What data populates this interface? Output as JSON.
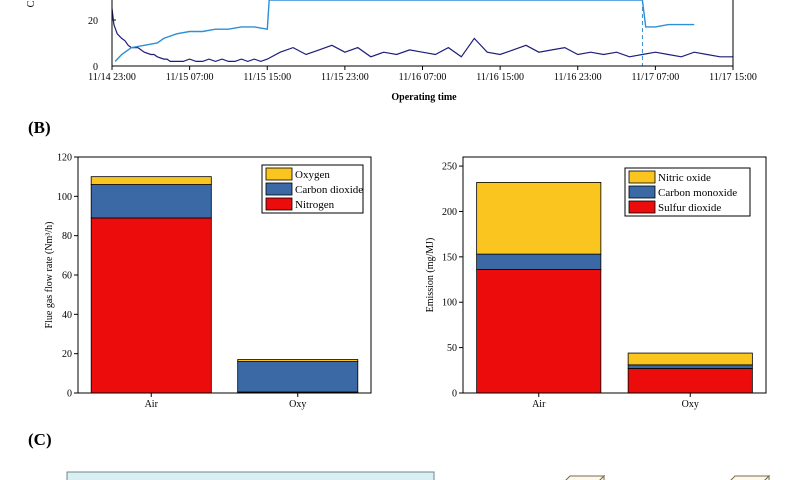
{
  "panels": {
    "b_label": "(B)",
    "c_label": "(C)"
  },
  "colors": {
    "line_dark": "#1e1e7a",
    "line_light": "#2f8fd6",
    "nitrogen": "#ec0c0c",
    "carbon_dioxide": "#3a69a6",
    "oxygen": "#f9c51e",
    "sulfur_dioxide": "#ec0c0c",
    "carbon_monoxide": "#3a69a6",
    "nitric_oxide": "#f9c51e",
    "panel_c_box": "#daeff2"
  },
  "chart_data": [
    {
      "type": "line",
      "partial": true,
      "xlabel": "Operating time",
      "ylabel": "C",
      "yticks": [
        "0",
        "20"
      ],
      "xticks": [
        "11/14 23:00",
        "11/15 07:00",
        "11/15 15:00",
        "11/15 23:00",
        "11/16 07:00",
        "11/16 15:00",
        "11/16 23:00",
        "11/17 07:00",
        "11/17 15:00"
      ],
      "series": [
        {
          "x": [
            0,
            0.3,
            0.8,
            1.5,
            2,
            2.5,
            3,
            4,
            5,
            6,
            6.5,
            7,
            8,
            8.5,
            9,
            10,
            11,
            12,
            13,
            14,
            15,
            16,
            17,
            18,
            19,
            20,
            21,
            22,
            23,
            24,
            26,
            28,
            30,
            32,
            34,
            36,
            38,
            40,
            42,
            44,
            46,
            48,
            50,
            52,
            54,
            56,
            58,
            60,
            62,
            64,
            66,
            68,
            70,
            72,
            74,
            76,
            78,
            80,
            82,
            84,
            86,
            88,
            90,
            92,
            94,
            96
          ],
          "y": [
            25,
            18,
            14,
            12,
            11,
            9,
            8,
            8,
            6,
            5,
            5,
            4,
            3,
            3,
            2,
            2,
            2,
            3,
            2,
            2,
            3,
            2,
            3,
            2,
            2,
            3,
            2,
            3,
            2,
            3,
            6,
            8,
            5,
            7,
            9,
            6,
            8,
            4,
            6,
            5,
            7,
            6,
            5,
            8,
            4,
            12,
            6,
            5,
            7,
            9,
            6,
            7,
            8,
            5,
            6,
            5,
            6,
            4,
            5,
            6,
            5,
            4,
            6,
            5,
            4,
            4
          ]
        },
        {
          "x": [
            0.5,
            1.5,
            3,
            5,
            7,
            8,
            10,
            12,
            14,
            16,
            18,
            20,
            22,
            24,
            24.3,
            82,
            82.5,
            84,
            86,
            88,
            90
          ],
          "y": [
            2,
            5,
            8,
            9,
            10,
            12,
            14,
            15,
            15,
            16,
            16,
            17,
            17,
            16,
            40,
            40,
            17,
            17,
            18,
            18,
            18
          ]
        }
      ]
    },
    {
      "type": "bar",
      "stacked": true,
      "categories": [
        "Air",
        "Oxy"
      ],
      "ylabel": "Flue gas flow rate (Nm³/h)",
      "ylim": [
        0,
        120
      ],
      "yticks": [
        "0",
        "20",
        "40",
        "60",
        "80",
        "100",
        "120"
      ],
      "legend_position": "top-right",
      "series": [
        {
          "name": "Nitrogen",
          "values": [
            89,
            0.5
          ]
        },
        {
          "name": "Carbon dioxide",
          "values": [
            17,
            15.5
          ]
        },
        {
          "name": "Oxygen",
          "values": [
            4,
            1
          ]
        }
      ]
    },
    {
      "type": "bar",
      "stacked": true,
      "categories": [
        "Air",
        "Oxy"
      ],
      "ylabel": "Emission (mg/MJ)",
      "ylim": [
        0,
        260
      ],
      "yticks": [
        "0",
        "50",
        "100",
        "150",
        "200",
        "250"
      ],
      "legend_position": "top-right",
      "series": [
        {
          "name": "Sulfur dioxide",
          "values": [
            136,
            27
          ]
        },
        {
          "name": "Carbon monoxide",
          "values": [
            17,
            4
          ]
        },
        {
          "name": "Nitric oxide",
          "values": [
            79,
            13
          ]
        }
      ]
    }
  ]
}
